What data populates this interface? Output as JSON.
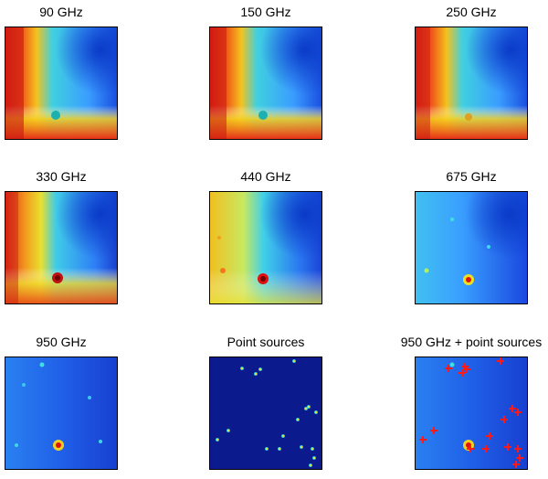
{
  "panels": [
    {
      "title": "90 GHz"
    },
    {
      "title": "150 GHz"
    },
    {
      "title": "250 GHz"
    },
    {
      "title": "330 GHz"
    },
    {
      "title": "440 GHz"
    },
    {
      "title": "675 GHz"
    },
    {
      "title": "950 GHz"
    },
    {
      "title": "Point sources"
    },
    {
      "title": "950 GHz + point sources"
    }
  ],
  "colors": {
    "dark_red": "#8b0000",
    "red": "#e8201c",
    "orange": "#f7941d",
    "yellow": "#f2e21d",
    "cyan": "#2fd0e8",
    "light_blue": "#3aa0ff",
    "blue": "#1f5ae0",
    "navy": "#0b1a8c",
    "marker_red": "#ff1a1a"
  }
}
